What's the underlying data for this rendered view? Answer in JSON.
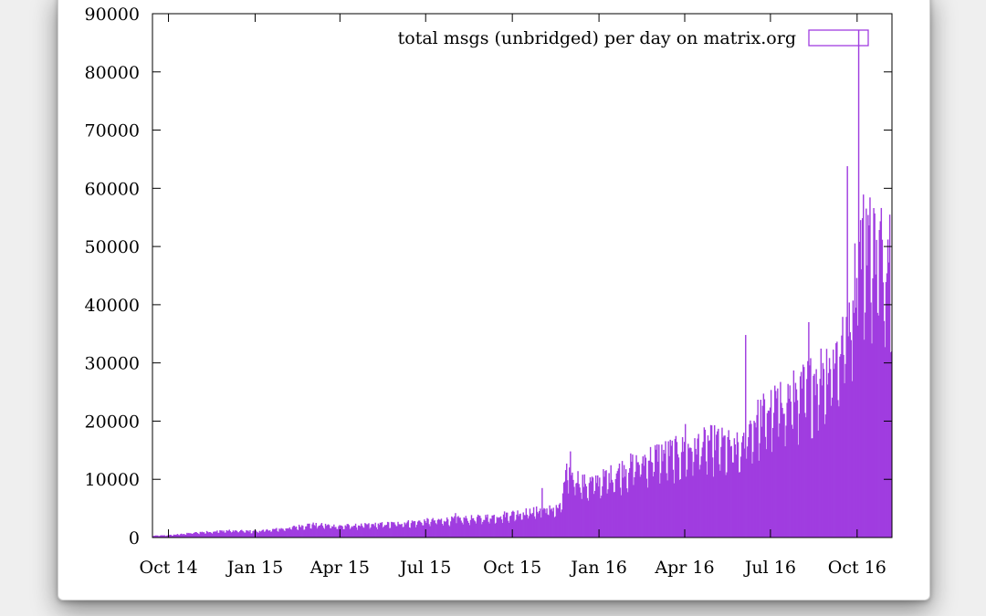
{
  "window": {
    "title": ""
  },
  "chart_data": {
    "type": "bar",
    "title": "",
    "xlabel": "",
    "ylabel": "",
    "legend": {
      "label": "total msgs (unbridged) per day on matrix.org",
      "position": "top-right",
      "color": "#a03de0"
    },
    "bar_color": "#a03de0",
    "grid": false,
    "ylim": [
      0,
      90000
    ],
    "yticks": [
      0,
      10000,
      20000,
      30000,
      40000,
      50000,
      60000,
      70000,
      80000,
      90000
    ],
    "xlim": [
      "2014-09-14",
      "2016-11-07"
    ],
    "xticks": [
      {
        "label": "Oct 14",
        "date": "2014-10-01"
      },
      {
        "label": "Jan 15",
        "date": "2015-01-01"
      },
      {
        "label": "Apr 15",
        "date": "2015-04-01"
      },
      {
        "label": "Jul 15",
        "date": "2015-07-01"
      },
      {
        "label": "Oct 15",
        "date": "2015-10-01"
      },
      {
        "label": "Jan 16",
        "date": "2016-01-01"
      },
      {
        "label": "Apr 16",
        "date": "2016-04-01"
      },
      {
        "label": "Jul 16",
        "date": "2016-07-01"
      },
      {
        "label": "Oct 16",
        "date": "2016-10-01"
      }
    ],
    "series": [
      {
        "x": [
          "2014-09-14",
          "2014-10-01",
          "2014-11-01",
          "2014-12-01",
          "2015-01-01",
          "2015-02-01",
          "2015-03-01",
          "2015-04-01",
          "2015-05-01",
          "2015-06-01",
          "2015-07-01",
          "2015-08-01",
          "2015-09-01",
          "2015-10-01",
          "2015-11-01",
          "2015-11-20",
          "2015-11-28",
          "2015-12-15",
          "2016-01-01",
          "2016-02-01",
          "2016-03-01",
          "2016-04-01",
          "2016-05-01",
          "2016-06-01",
          "2016-06-10",
          "2016-07-01",
          "2016-08-01",
          "2016-08-15",
          "2016-09-01",
          "2016-09-15",
          "2016-10-01",
          "2016-10-10",
          "2016-10-20",
          "2016-11-05"
        ],
        "y": [
          300,
          400,
          900,
          1200,
          1100,
          1600,
          2300,
          2000,
          2200,
          2500,
          2900,
          3200,
          3500,
          4200,
          4800,
          5200,
          12000,
          9500,
          10000,
          12500,
          14500,
          15500,
          17000,
          15500,
          20000,
          23000,
          26000,
          28000,
          31000,
          34000,
          48000,
          55000,
          50000,
          52000
        ]
      }
    ],
    "spikes": [
      {
        "x": "2015-08-01",
        "y": 4200
      },
      {
        "x": "2015-11-01",
        "y": 8500
      },
      {
        "x": "2015-12-01",
        "y": 14800
      },
      {
        "x": "2016-04-01",
        "y": 19500
      },
      {
        "x": "2016-06-04",
        "y": 34800
      },
      {
        "x": "2016-08-10",
        "y": 37000
      },
      {
        "x": "2016-09-20",
        "y": 63800
      },
      {
        "x": "2016-10-02",
        "y": 87200
      },
      {
        "x": "2016-10-18",
        "y": 56600
      }
    ]
  }
}
